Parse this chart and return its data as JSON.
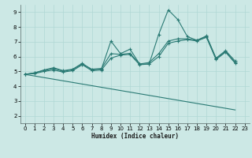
{
  "xlabel": "Humidex (Indice chaleur)",
  "background_color": "#cce8e5",
  "grid_color": "#b0d8d4",
  "line_color": "#2a7a74",
  "xlim": [
    -0.5,
    23.5
  ],
  "ylim": [
    1.5,
    9.5
  ],
  "xticks": [
    0,
    1,
    2,
    3,
    4,
    5,
    6,
    7,
    8,
    9,
    10,
    11,
    12,
    13,
    14,
    15,
    16,
    17,
    18,
    19,
    20,
    21,
    22,
    23
  ],
  "yticks": [
    2,
    3,
    4,
    5,
    6,
    7,
    8,
    9
  ],
  "series": [
    {
      "x": [
        0,
        1,
        2,
        3,
        4,
        5,
        6,
        7,
        8,
        9,
        10,
        11,
        12,
        13,
        14,
        15,
        16,
        17,
        18,
        19,
        20,
        21,
        22
      ],
      "y": [
        4.8,
        4.9,
        5.1,
        5.25,
        5.05,
        5.15,
        5.55,
        5.1,
        5.15,
        7.05,
        6.2,
        6.5,
        5.5,
        5.5,
        7.5,
        9.15,
        8.5,
        7.35,
        7.1,
        7.4,
        5.9,
        6.4,
        5.7
      ],
      "marker": true
    },
    {
      "x": [
        0,
        1,
        2,
        3,
        4,
        5,
        6,
        7,
        8,
        9,
        10,
        11,
        12,
        13,
        14,
        15,
        16,
        17,
        18,
        19,
        20,
        21,
        22
      ],
      "y": [
        4.8,
        4.9,
        5.05,
        5.2,
        5.0,
        5.12,
        5.5,
        5.15,
        5.2,
        6.2,
        6.15,
        6.22,
        5.5,
        5.6,
        6.2,
        7.05,
        7.2,
        7.2,
        7.1,
        7.35,
        5.85,
        6.35,
        5.6
      ],
      "marker": true
    },
    {
      "x": [
        0,
        1,
        2,
        3,
        4,
        5,
        6,
        7,
        8,
        9,
        10,
        11,
        12,
        13,
        14,
        15,
        16,
        17,
        18,
        19,
        20,
        21,
        22
      ],
      "y": [
        4.8,
        4.85,
        5.0,
        5.1,
        4.95,
        5.05,
        5.45,
        5.05,
        5.1,
        5.9,
        6.1,
        6.15,
        5.45,
        5.5,
        6.0,
        6.9,
        7.05,
        7.15,
        7.05,
        7.3,
        5.8,
        6.3,
        5.55
      ],
      "marker": true
    },
    {
      "x": [
        0,
        22
      ],
      "y": [
        4.8,
        2.4
      ],
      "marker": false
    }
  ]
}
